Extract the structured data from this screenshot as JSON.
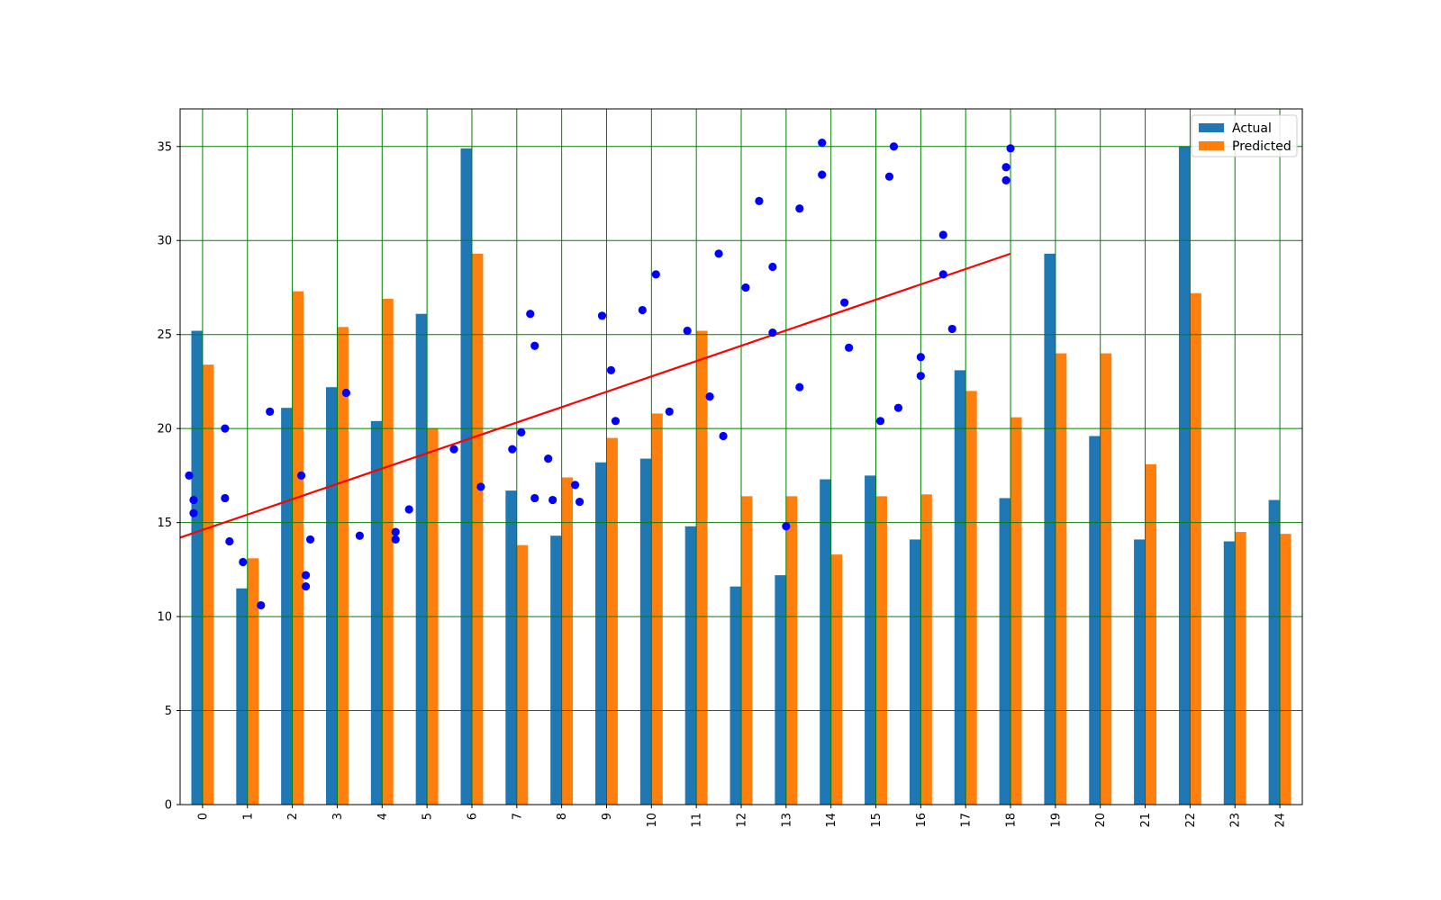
{
  "chart_data": {
    "type": "bar",
    "title": "",
    "xlabel": "",
    "ylabel": "",
    "categories": [
      "0",
      "1",
      "2",
      "3",
      "4",
      "5",
      "6",
      "7",
      "8",
      "9",
      "10",
      "11",
      "12",
      "13",
      "14",
      "15",
      "16",
      "17",
      "18",
      "19",
      "20",
      "21",
      "22",
      "23",
      "24"
    ],
    "ylim": [
      0,
      37
    ],
    "yticks": [
      0,
      5,
      10,
      15,
      20,
      25,
      30,
      35
    ],
    "grid": true,
    "grid_color": "#008000",
    "legend_position": "top-right",
    "x_tick_rotation": "vertical",
    "series": [
      {
        "name": "Actual",
        "color": "#1f77b4",
        "values": [
          25.2,
          11.5,
          21.1,
          22.2,
          20.4,
          26.1,
          34.9,
          16.7,
          14.3,
          18.2,
          18.4,
          14.8,
          11.6,
          12.2,
          17.3,
          17.5,
          14.1,
          23.1,
          16.3,
          29.3,
          19.6,
          14.1,
          35.0,
          14.0,
          16.2
        ]
      },
      {
        "name": "Predicted",
        "color": "#ff7f0e",
        "values": [
          23.4,
          13.1,
          27.3,
          25.4,
          26.9,
          20.0,
          29.3,
          13.8,
          17.4,
          19.5,
          20.8,
          25.2,
          16.4,
          16.4,
          13.3,
          16.4,
          16.5,
          22.0,
          20.6,
          24.0,
          24.0,
          18.1,
          27.2,
          14.5,
          14.4
        ]
      }
    ],
    "scatter_overlay": {
      "color": "#0000ff",
      "points": [
        [
          -0.3,
          17.5
        ],
        [
          -0.2,
          16.2
        ],
        [
          -0.2,
          15.5
        ],
        [
          0.5,
          20.0
        ],
        [
          0.5,
          16.3
        ],
        [
          0.6,
          14.0
        ],
        [
          0.9,
          12.9
        ],
        [
          1.3,
          10.6
        ],
        [
          1.5,
          20.9
        ],
        [
          2.2,
          17.5
        ],
        [
          2.3,
          12.2
        ],
        [
          2.3,
          11.6
        ],
        [
          2.4,
          14.1
        ],
        [
          3.2,
          21.9
        ],
        [
          3.5,
          14.3
        ],
        [
          4.3,
          14.5
        ],
        [
          4.3,
          14.1
        ],
        [
          4.6,
          15.7
        ],
        [
          5.6,
          18.9
        ],
        [
          6.2,
          16.9
        ],
        [
          7.3,
          26.1
        ],
        [
          6.9,
          18.9
        ],
        [
          7.1,
          19.8
        ],
        [
          7.4,
          16.3
        ],
        [
          7.4,
          24.4
        ],
        [
          7.7,
          18.4
        ],
        [
          7.8,
          16.2
        ],
        [
          8.3,
          17.0
        ],
        [
          8.4,
          16.1
        ],
        [
          8.9,
          26.0
        ],
        [
          9.1,
          23.1
        ],
        [
          9.2,
          20.4
        ],
        [
          9.8,
          26.3
        ],
        [
          10.1,
          28.2
        ],
        [
          10.4,
          20.9
        ],
        [
          10.8,
          25.2
        ],
        [
          11.3,
          21.7
        ],
        [
          11.5,
          29.3
        ],
        [
          11.6,
          19.6
        ],
        [
          12.1,
          27.5
        ],
        [
          12.4,
          32.1
        ],
        [
          12.7,
          28.6
        ],
        [
          12.7,
          25.1
        ],
        [
          13.0,
          14.8
        ],
        [
          13.3,
          31.7
        ],
        [
          13.3,
          22.2
        ],
        [
          13.8,
          35.2
        ],
        [
          13.8,
          33.5
        ],
        [
          14.3,
          26.7
        ],
        [
          14.4,
          24.3
        ],
        [
          15.1,
          20.4
        ],
        [
          15.3,
          33.4
        ],
        [
          15.4,
          35.0
        ],
        [
          15.5,
          21.1
        ],
        [
          16.0,
          23.8
        ],
        [
          16.0,
          22.8
        ],
        [
          16.5,
          30.3
        ],
        [
          16.5,
          28.2
        ],
        [
          16.7,
          25.3
        ],
        [
          17.9,
          33.9
        ],
        [
          17.9,
          33.2
        ],
        [
          18.0,
          34.9
        ]
      ]
    },
    "line_overlay": {
      "color": "#ff0000",
      "points": [
        [
          -0.5,
          14.2
        ],
        [
          18.0,
          29.3
        ]
      ]
    }
  }
}
